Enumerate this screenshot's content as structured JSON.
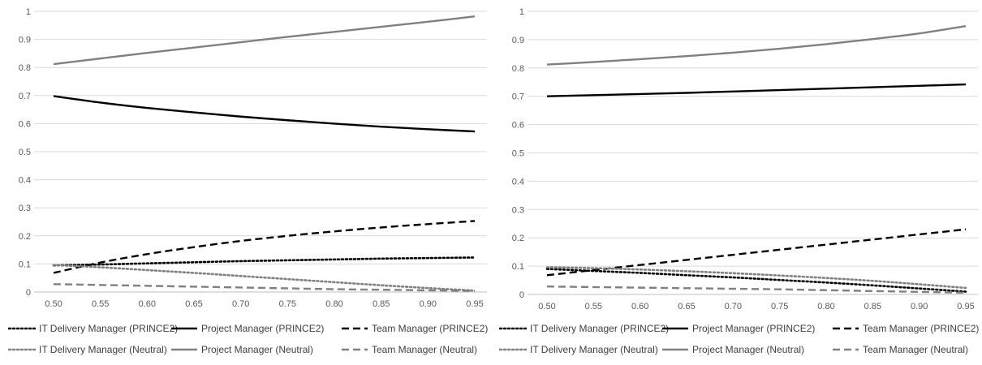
{
  "colors": {
    "dark": "#000000",
    "gray": "#808080",
    "grid": "#d9d9d9",
    "axis": "#bfbfbf"
  },
  "chart_data": [
    {
      "type": "line",
      "x": [
        0.5,
        0.55,
        0.6,
        0.65,
        0.7,
        0.75,
        0.8,
        0.85,
        0.9,
        0.95
      ],
      "x_tick_labels": [
        "0.50",
        "0.55",
        "0.60",
        "0.65",
        "0.70",
        "0.75",
        "0.80",
        "0.85",
        "0.90",
        "0.95"
      ],
      "y_tick_labels": [
        "0",
        "0.1",
        "0.2",
        "0.3",
        "0.4",
        "0.5",
        "0.6",
        "0.7",
        "0.8",
        "0.9",
        "1"
      ],
      "ylim": [
        0,
        1
      ],
      "grid": "horizontal",
      "legend_placement": "bottom",
      "series": [
        {
          "name": "IT Delivery Manager (PRINCE2)",
          "color": "#000000",
          "dash": "dotted",
          "values": [
            0.095,
            0.098,
            0.102,
            0.106,
            0.11,
            0.113,
            0.116,
            0.119,
            0.121,
            0.123
          ]
        },
        {
          "name": "Project Manager (PRINCE2)",
          "color": "#000000",
          "dash": "solid",
          "values": [
            0.698,
            0.675,
            0.656,
            0.64,
            0.625,
            0.612,
            0.6,
            0.589,
            0.58,
            0.572
          ]
        },
        {
          "name": "Team Manager (PRINCE2)",
          "color": "#000000",
          "dash": "dashed",
          "values": [
            0.068,
            0.105,
            0.135,
            0.16,
            0.182,
            0.2,
            0.216,
            0.23,
            0.242,
            0.253
          ]
        },
        {
          "name": "IT Delivery Manager (Neutral)",
          "color": "#808080",
          "dash": "dotted",
          "values": [
            0.096,
            0.088,
            0.078,
            0.068,
            0.057,
            0.046,
            0.035,
            0.024,
            0.014,
            0.005
          ]
        },
        {
          "name": "Project Manager (Neutral)",
          "color": "#808080",
          "dash": "solid",
          "values": [
            0.812,
            0.832,
            0.852,
            0.871,
            0.89,
            0.909,
            0.927,
            0.945,
            0.963,
            0.982
          ]
        },
        {
          "name": "Team Manager (Neutral)",
          "color": "#808080",
          "dash": "dashed",
          "values": [
            0.028,
            0.025,
            0.022,
            0.019,
            0.016,
            0.013,
            0.01,
            0.008,
            0.006,
            0.004
          ]
        }
      ]
    },
    {
      "type": "line",
      "x": [
        0.5,
        0.55,
        0.6,
        0.65,
        0.7,
        0.75,
        0.8,
        0.85,
        0.9,
        0.95
      ],
      "x_tick_labels": [
        "0.50",
        "0.55",
        "0.60",
        "0.65",
        "0.70",
        "0.75",
        "0.80",
        "0.85",
        "0.90",
        "0.95"
      ],
      "y_tick_labels": [
        "0",
        "0.1",
        "0.2",
        "0.3",
        "0.4",
        "0.5",
        "0.6",
        "0.7",
        "0.8",
        "0.9",
        "1"
      ],
      "ylim": [
        0,
        1
      ],
      "grid": "horizontal",
      "legend_placement": "bottom",
      "series": [
        {
          "name": "IT Delivery Manager (PRINCE2)",
          "color": "#000000",
          "dash": "dotted",
          "values": [
            0.09,
            0.083,
            0.076,
            0.068,
            0.06,
            0.051,
            0.042,
            0.032,
            0.021,
            0.01
          ]
        },
        {
          "name": "Project Manager (PRINCE2)",
          "color": "#000000",
          "dash": "solid",
          "values": [
            0.7,
            0.704,
            0.708,
            0.712,
            0.717,
            0.722,
            0.727,
            0.732,
            0.737,
            0.742
          ]
        },
        {
          "name": "Team Manager (PRINCE2)",
          "color": "#000000",
          "dash": "dashed",
          "values": [
            0.068,
            0.086,
            0.104,
            0.122,
            0.14,
            0.158,
            0.176,
            0.194,
            0.212,
            0.23
          ]
        },
        {
          "name": "IT Delivery Manager (Neutral)",
          "color": "#808080",
          "dash": "dotted",
          "values": [
            0.096,
            0.093,
            0.088,
            0.082,
            0.075,
            0.067,
            0.058,
            0.048,
            0.036,
            0.023
          ]
        },
        {
          "name": "Project Manager (Neutral)",
          "color": "#808080",
          "dash": "solid",
          "values": [
            0.812,
            0.821,
            0.831,
            0.842,
            0.854,
            0.868,
            0.884,
            0.902,
            0.922,
            0.948
          ]
        },
        {
          "name": "Team Manager (Neutral)",
          "color": "#808080",
          "dash": "dashed",
          "values": [
            0.028,
            0.026,
            0.024,
            0.022,
            0.02,
            0.018,
            0.015,
            0.012,
            0.009,
            0.006
          ]
        }
      ]
    }
  ]
}
